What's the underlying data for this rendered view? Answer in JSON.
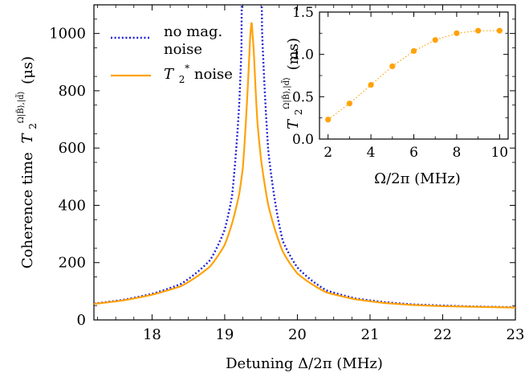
{
  "chart_data": [
    {
      "type": "line",
      "xlabel": "Detuning Δ/2π (MHz)",
      "ylabel_text": "Coherence time",
      "ylabel_symbol": "T",
      "ylabel_sub": "2",
      "ylabel_sup": "Ω|B̃⟩,|d̃⟩",
      "ylabel_unit": "(μs)",
      "xlim": [
        17.2,
        23.0
      ],
      "ylim": [
        0,
        1100
      ],
      "xticks": [
        18,
        19,
        20,
        21,
        22,
        23
      ],
      "yticks": [
        0,
        200,
        400,
        600,
        800,
        1000
      ],
      "grid": false,
      "legend_position": "upper-left",
      "series": [
        {
          "name": "no mag. noise",
          "name_lines": [
            "no mag.",
            "noise"
          ],
          "style": "dotted",
          "color": "#1f1fd6",
          "x0": 19.37,
          "w": 0.00875,
          "ymax": 220000,
          "x": [
            17.2,
            17.6,
            18.0,
            18.4,
            18.8,
            19.0,
            19.1,
            19.2,
            19.25,
            19.3,
            19.35,
            19.37,
            19.4,
            19.45,
            19.5,
            19.6,
            19.8,
            20.0,
            20.4,
            20.8,
            21.2,
            21.6,
            22.0,
            22.4,
            22.8,
            23.0
          ],
          "y": [
            57,
            70,
            91,
            126,
            209,
            315,
            431,
            754,
            1100,
            1100,
            1100,
            1100,
            1100,
            1100,
            1100,
            589,
            275,
            183,
            103,
            75,
            62,
            54,
            50,
            47,
            45,
            44
          ]
        },
        {
          "name": "T2* noise",
          "name_symbol": "T",
          "name_sub": "2",
          "name_sup": "*",
          "name_rest": " noise",
          "style": "solid",
          "color": "#ffa20a",
          "x0": 19.37,
          "w": 0.00875,
          "ymax": 1045,
          "x": [
            17.2,
            17.6,
            18.0,
            18.4,
            18.8,
            19.0,
            19.1,
            19.2,
            19.25,
            19.3,
            19.35,
            19.37,
            19.4,
            19.45,
            19.5,
            19.6,
            19.8,
            20.0,
            20.4,
            20.8,
            21.2,
            21.6,
            22.0,
            22.4,
            22.8,
            23.0
          ],
          "y": [
            56,
            68,
            88,
            118,
            187,
            262,
            336,
            440,
            532,
            732,
            990,
            1045,
            940,
            690,
            560,
            400,
            238,
            162,
            96,
            72,
            59,
            52,
            48,
            46,
            44,
            43
          ]
        }
      ]
    },
    {
      "type": "scatter",
      "xlabel": "Ω/2π (MHz)",
      "ylabel_symbol": "T",
      "ylabel_sub": "2",
      "ylabel_sup": "Ω|B̃⟩,|d̃⟩",
      "ylabel_unit": "(ms)",
      "xlim": [
        1.6,
        10.4
      ],
      "ylim": [
        0.0,
        1.5
      ],
      "xticks": [
        2,
        4,
        6,
        8,
        10
      ],
      "yticks": [
        0.0,
        0.5,
        1.0,
        1.5
      ],
      "grid": false,
      "series": [
        {
          "color": "#ffa20a",
          "style": "dotted-with-markers",
          "x": [
            2,
            3,
            4,
            5,
            6,
            7,
            8,
            9,
            10
          ],
          "y": [
            0.23,
            0.42,
            0.64,
            0.86,
            1.04,
            1.17,
            1.25,
            1.28,
            1.28
          ]
        }
      ]
    }
  ]
}
